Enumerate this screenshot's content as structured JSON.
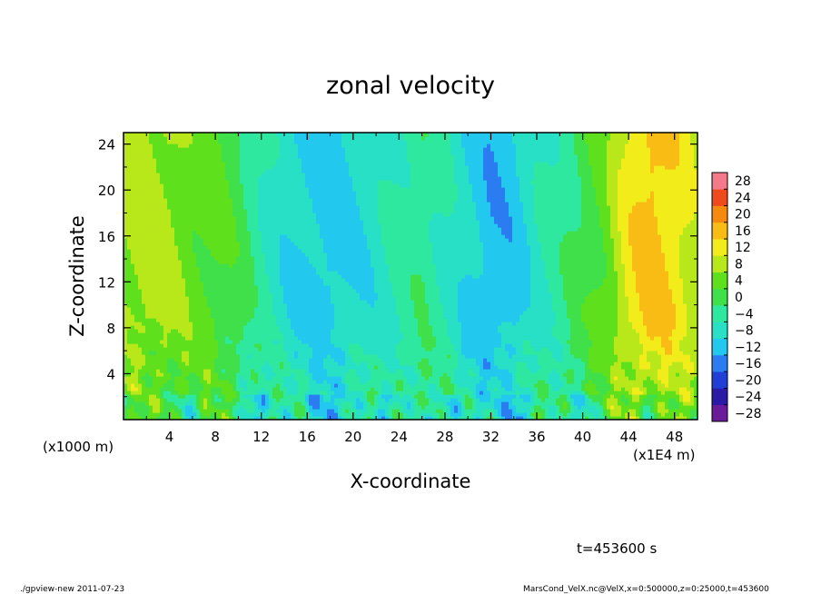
{
  "chart_data": {
    "type": "heatmap",
    "title": "zonal velocity",
    "xlabel": "X-coordinate",
    "ylabel": "Z-coordinate",
    "x_unit_left": "(x1000 m)",
    "x_unit_right": "(x1E4 m)",
    "xlim": [
      0,
      50
    ],
    "ylim": [
      0,
      25
    ],
    "x_ticks": [
      4,
      8,
      12,
      16,
      20,
      24,
      28,
      32,
      36,
      40,
      44,
      48
    ],
    "y_ticks": [
      4,
      8,
      12,
      16,
      20,
      24
    ],
    "x_tick_labels": [
      "4",
      "8",
      "12",
      "16",
      "20",
      "24",
      "28",
      "32",
      "36",
      "40",
      "44",
      "48"
    ],
    "y_tick_labels": [
      "4",
      "8",
      "12",
      "16",
      "20",
      "24"
    ],
    "colorbar": {
      "levels": [
        -28,
        -24,
        -20,
        -16,
        -12,
        -8,
        -4,
        0,
        4,
        8,
        12,
        16,
        20,
        24,
        28
      ],
      "labels": [
        "28",
        "24",
        "20",
        "16",
        "12",
        "8",
        "4",
        "0",
        "−4",
        "−8",
        "−12",
        "−16",
        "−20",
        "−24",
        "−28"
      ],
      "colors": [
        "#6a1b9a",
        "#2a1aa6",
        "#1f3fd6",
        "#2a7cf0",
        "#22c8ee",
        "#27e0c6",
        "#2ee8a0",
        "#3fe04a",
        "#5fe01c",
        "#b8e81a",
        "#f2ec1a",
        "#f8bc14",
        "#f58a0e",
        "#ee4a1c",
        "#f47a8a"
      ]
    },
    "field_profile_x": [
      0,
      2,
      4,
      6,
      8,
      10,
      12,
      14,
      16,
      18,
      20,
      22,
      24,
      26,
      28,
      30,
      32,
      34,
      36,
      38,
      40,
      42,
      44,
      46,
      48,
      50
    ],
    "field_profile_value": [
      9,
      10,
      9,
      6,
      5,
      2,
      -3,
      -7,
      -9,
      -10,
      -8,
      -6,
      -3,
      -1,
      -4,
      -8,
      -11,
      -10,
      -5,
      -2,
      2,
      6,
      14,
      18,
      15,
      10
    ]
  },
  "footer": {
    "time_label": "t=453600 s",
    "left_note": "./gpview-new 2011-07-23",
    "right_note": "MarsCond_VelX.nc@VelX,x=0:500000,z=0:25000,t=453600"
  }
}
